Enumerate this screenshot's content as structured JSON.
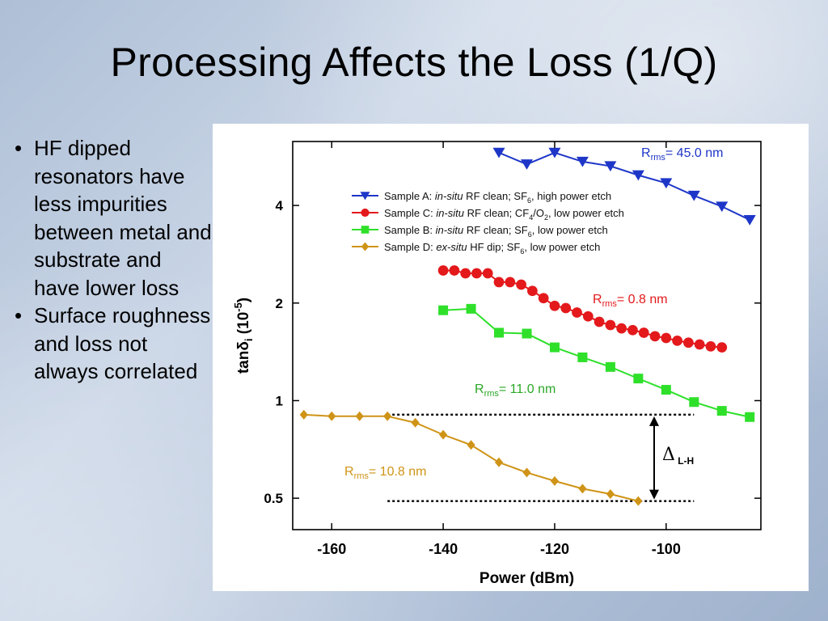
{
  "slide": {
    "title": "Processing Affects the Loss (1/Q)",
    "bullets": [
      "HF dipped resonators have less impurities between metal and substrate and have lower loss",
      "Surface roughness and loss not always correlated"
    ]
  },
  "chart_data": {
    "type": "line",
    "xlabel": "Power (dBm)",
    "ylabel_main": "tanδ",
    "ylabel_sub": "i",
    "ylabel_unit_open": " (10",
    "ylabel_exp": "-5",
    "ylabel_unit_close": ")",
    "y_scale": "log",
    "xlim": [
      -167,
      -83
    ],
    "ylim": [
      0.4,
      6.3
    ],
    "x_ticks": [
      -160,
      -140,
      -120,
      -100
    ],
    "x_tick_labels": [
      "-160",
      "-140",
      "-120",
      "-100"
    ],
    "y_ticks": [
      0.5,
      1,
      2,
      4
    ],
    "y_tick_labels": [
      "0.5",
      "1",
      "2",
      "4"
    ],
    "grid": false,
    "legend_position": "top-center",
    "series": [
      {
        "legend_parts": [
          "Sample A: ",
          "in-situ",
          " RF clean; SF",
          "6",
          ", high power etch"
        ],
        "color": "#1e36c8",
        "marker": "triangle-down",
        "x": [
          -130,
          -125,
          -120,
          -115,
          -110,
          -105,
          -100,
          -95,
          -90,
          -85
        ],
        "y": [
          5.82,
          5.36,
          5.82,
          5.46,
          5.29,
          4.96,
          4.69,
          4.29,
          3.97,
          3.61
        ]
      },
      {
        "legend_parts": [
          "Sample C: ",
          "in-situ",
          " RF clean; CF",
          "4",
          "/O",
          "2",
          ", low power etch"
        ],
        "color": "#e3191c",
        "marker": "circle",
        "x": [
          -140,
          -138,
          -136,
          -134,
          -132,
          -130,
          -128,
          -126,
          -124,
          -122,
          -120,
          -118,
          -116,
          -114,
          -112,
          -110,
          -108,
          -106,
          -104,
          -102,
          -100,
          -98,
          -96,
          -94,
          -92,
          -90
        ],
        "y": [
          2.52,
          2.52,
          2.47,
          2.47,
          2.47,
          2.32,
          2.32,
          2.28,
          2.18,
          2.07,
          1.96,
          1.93,
          1.87,
          1.82,
          1.75,
          1.71,
          1.67,
          1.65,
          1.62,
          1.58,
          1.56,
          1.53,
          1.51,
          1.49,
          1.47,
          1.46
        ]
      },
      {
        "legend_parts": [
          "Sample B: ",
          "in-situ",
          " RF clean; SF",
          "6",
          ",  low power etch"
        ],
        "color": "#2ee02a",
        "marker": "square",
        "x": [
          -140,
          -135,
          -130,
          -125,
          -120,
          -115,
          -110,
          -105,
          -100,
          -95,
          -90,
          -85
        ],
        "y": [
          1.9,
          1.92,
          1.62,
          1.61,
          1.46,
          1.36,
          1.27,
          1.17,
          1.08,
          0.99,
          0.93,
          0.89
        ]
      },
      {
        "legend_parts": [
          "Sample D: ",
          "ex-situ",
          " HF dip; SF",
          "6",
          ",  low power etch"
        ],
        "color": "#cf9417",
        "marker": "diamond",
        "x": [
          -165,
          -160,
          -155,
          -150,
          -145,
          -140,
          -135,
          -130,
          -125,
          -120,
          -115,
          -110,
          -105
        ],
        "y": [
          0.905,
          0.895,
          0.895,
          0.895,
          0.855,
          0.785,
          0.73,
          0.645,
          0.6,
          0.565,
          0.535,
          0.515,
          0.49
        ]
      }
    ],
    "annotations": [
      {
        "id": "rrms-a",
        "r": "R",
        "sub": "rms",
        "value": "= 45.0 nm",
        "color": "#1e36c8"
      },
      {
        "id": "rrms-c",
        "r": "R",
        "sub": "rms",
        "value": "= 0.8 nm",
        "color": "#e3191c"
      },
      {
        "id": "rrms-b",
        "r": "R",
        "sub": "rms",
        "value": "= 11.0 nm",
        "color": "#2aa826"
      },
      {
        "id": "rrms-d",
        "r": "R",
        "sub": "rms",
        "value": "= 10.8 nm",
        "color": "#cf9417"
      }
    ],
    "delta_label": {
      "symbol": "Δ",
      "sub": "L-H"
    },
    "reference_lines": [
      {
        "from_x": -150,
        "to_x": -95,
        "y": 0.905
      },
      {
        "from_x": -150,
        "to_x": -95,
        "y": 0.49
      }
    ]
  }
}
